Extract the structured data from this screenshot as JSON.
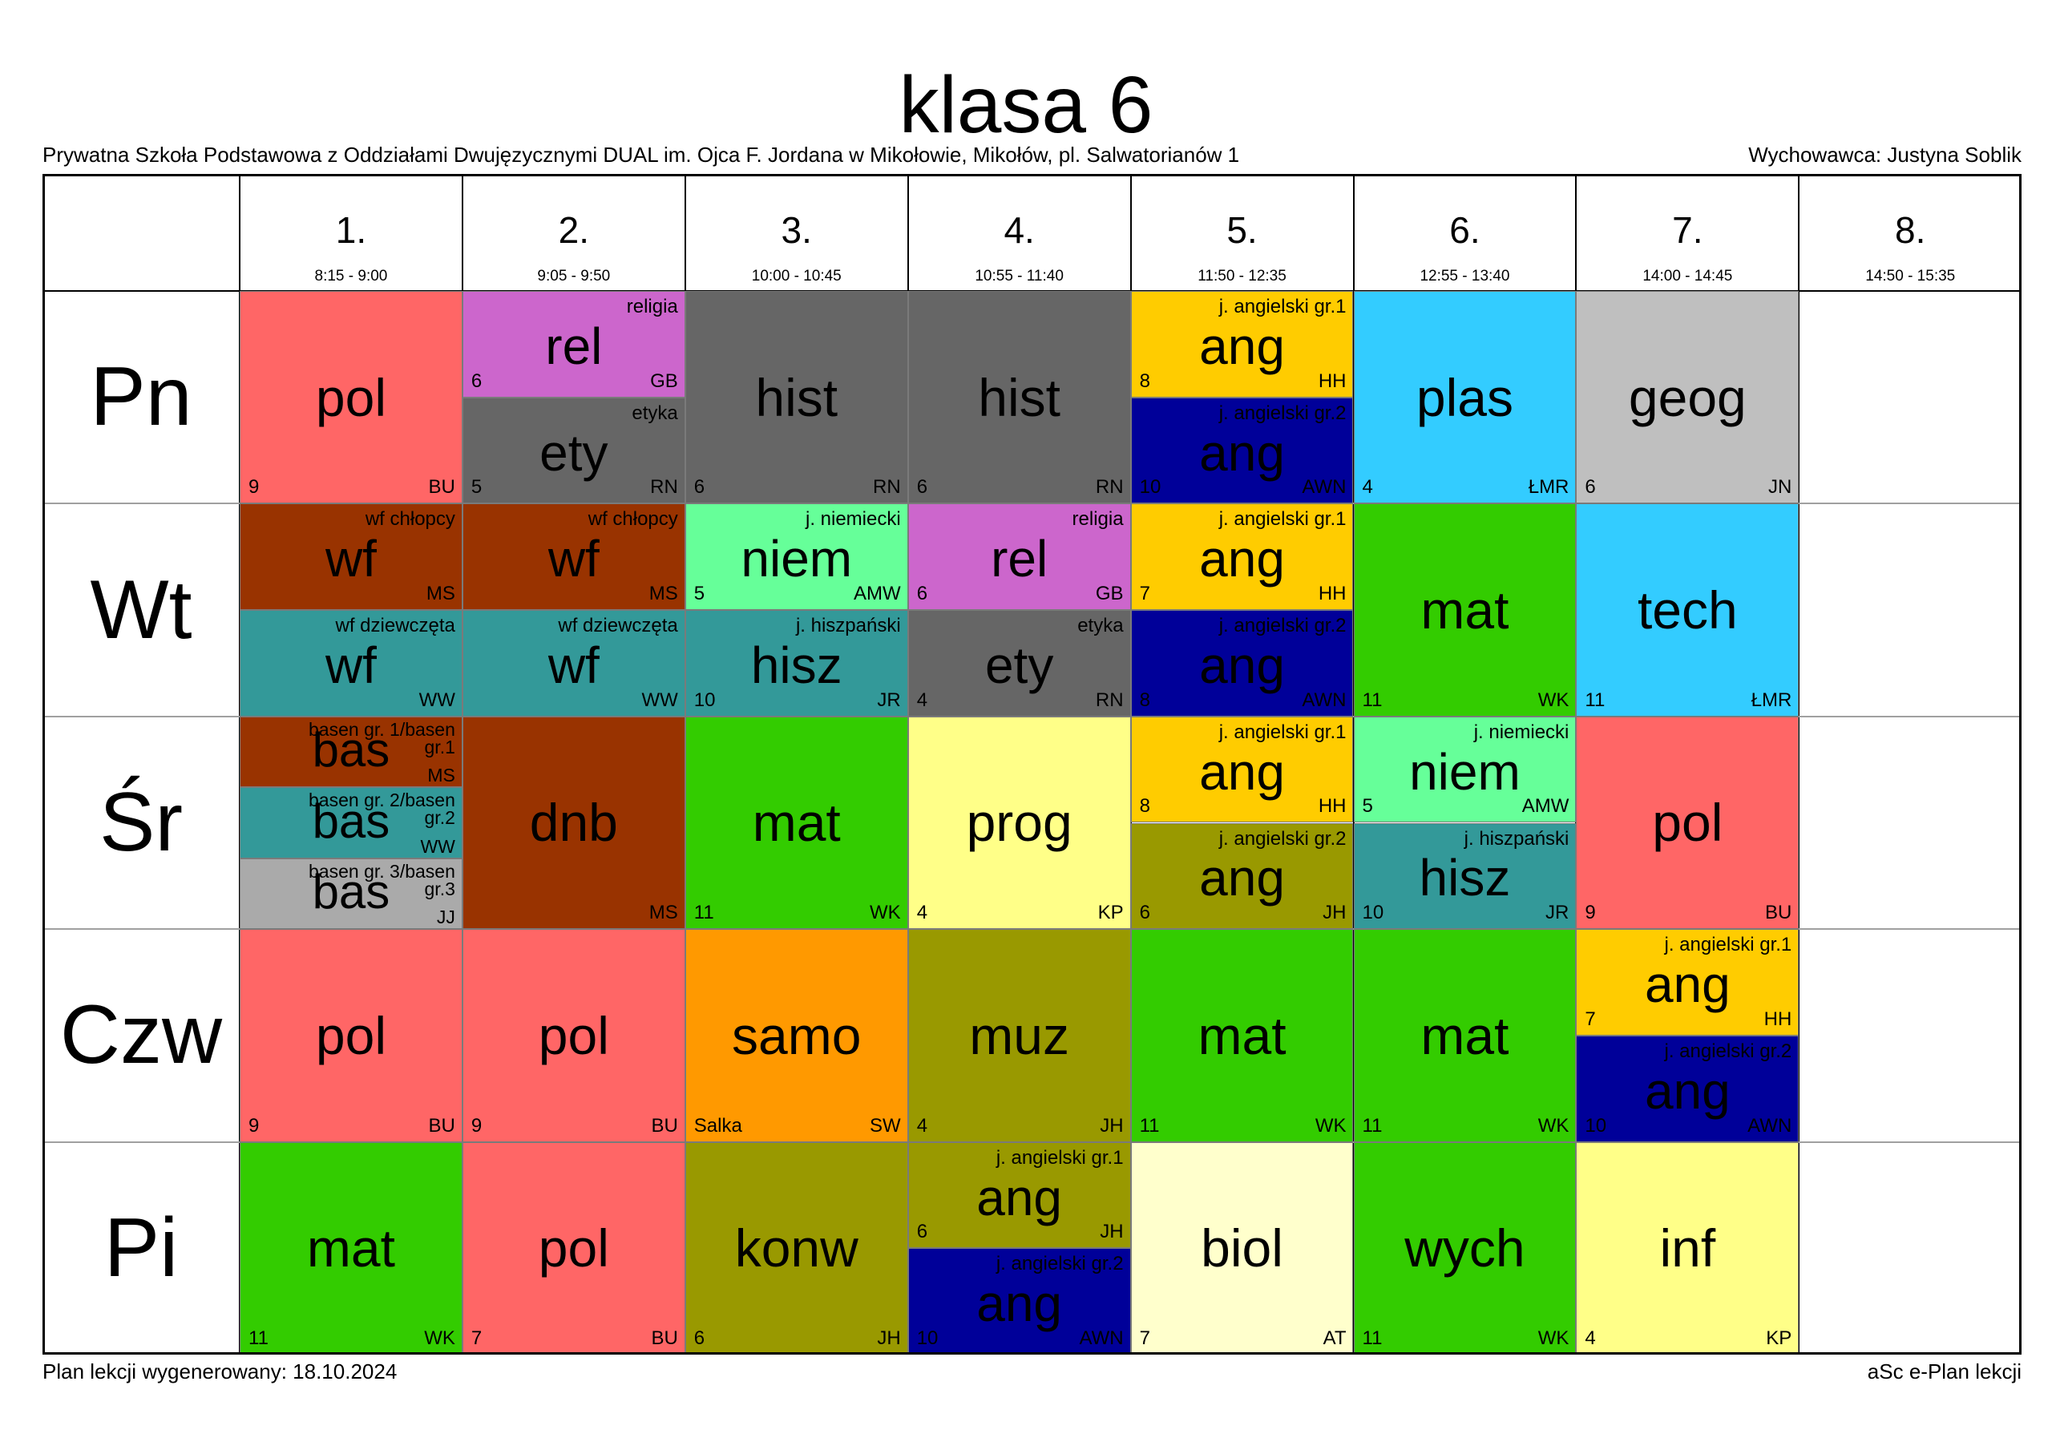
{
  "header": {
    "title": "klasa 6",
    "school": "Prywatna Szkoła Podstawowa z Oddziałami Dwujęzycznymi DUAL im. Ojca F. Jordana w Mikołowie, Mikołów, pl. Salwatorianów 1",
    "homeroom": "Wychowawca: Justyna Soblik"
  },
  "footer": {
    "generated": "Plan lekcji wygenerowany: 18.10.2024",
    "software": "aSc e-Plan lekcji"
  },
  "periods": [
    {
      "num": "1.",
      "time": "8:15 - 9:00"
    },
    {
      "num": "2.",
      "time": "9:05 - 9:50"
    },
    {
      "num": "3.",
      "time": "10:00 - 10:45"
    },
    {
      "num": "4.",
      "time": "10:55 - 11:40"
    },
    {
      "num": "5.",
      "time": "11:50 - 12:35"
    },
    {
      "num": "6.",
      "time": "12:55 - 13:40"
    },
    {
      "num": "7.",
      "time": "14:00 - 14:45"
    },
    {
      "num": "8.",
      "time": "14:50 - 15:35"
    }
  ],
  "days": [
    "Pn",
    "Wt",
    "Śr",
    "Czw",
    "Pi"
  ],
  "lessons": [
    {
      "day": 0,
      "period": 0,
      "part": 0,
      "parts": 1,
      "subject": "pol",
      "room": "9",
      "teacher": "BU",
      "color": "#ff6666"
    },
    {
      "day": 0,
      "period": 1,
      "part": 0,
      "parts": 2,
      "subject": "rel",
      "label": "religia",
      "room": "6",
      "teacher": "GB",
      "color": "#cc66cc"
    },
    {
      "day": 0,
      "period": 1,
      "part": 1,
      "parts": 2,
      "subject": "ety",
      "label": "etyka",
      "room": "5",
      "teacher": "RN",
      "color": "#666666"
    },
    {
      "day": 0,
      "period": 2,
      "part": 0,
      "parts": 1,
      "subject": "hist",
      "room": "6",
      "teacher": "RN",
      "color": "#666666"
    },
    {
      "day": 0,
      "period": 3,
      "part": 0,
      "parts": 1,
      "subject": "hist",
      "room": "6",
      "teacher": "RN",
      "color": "#666666"
    },
    {
      "day": 0,
      "period": 4,
      "part": 0,
      "parts": 2,
      "subject": "ang",
      "label": "j. angielski gr.1",
      "room": "8",
      "teacher": "HH",
      "color": "#ffcc00"
    },
    {
      "day": 0,
      "period": 4,
      "part": 1,
      "parts": 2,
      "subject": "ang",
      "label": "j. angielski gr.2",
      "room": "10",
      "teacher": "AWN",
      "color": "#000099"
    },
    {
      "day": 0,
      "period": 5,
      "part": 0,
      "parts": 1,
      "subject": "plas",
      "room": "4",
      "teacher": "ŁMR",
      "color": "#33ccff"
    },
    {
      "day": 0,
      "period": 6,
      "part": 0,
      "parts": 1,
      "subject": "geog",
      "room": "6",
      "teacher": "JN",
      "color": "#bfbfbf"
    },
    {
      "day": 1,
      "period": 0,
      "part": 0,
      "parts": 2,
      "subject": "wf",
      "label": "wf chłopcy",
      "room": "",
      "teacher": "MS",
      "color": "#993300"
    },
    {
      "day": 1,
      "period": 0,
      "part": 1,
      "parts": 2,
      "subject": "wf",
      "label": "wf dziewczęta",
      "room": "",
      "teacher": "WW",
      "color": "#339999"
    },
    {
      "day": 1,
      "period": 1,
      "part": 0,
      "parts": 2,
      "subject": "wf",
      "label": "wf chłopcy",
      "room": "",
      "teacher": "MS",
      "color": "#993300"
    },
    {
      "day": 1,
      "period": 1,
      "part": 1,
      "parts": 2,
      "subject": "wf",
      "label": "wf dziewczęta",
      "room": "",
      "teacher": "WW",
      "color": "#339999"
    },
    {
      "day": 1,
      "period": 2,
      "part": 0,
      "parts": 2,
      "subject": "niem",
      "label": "j. niemiecki",
      "room": "5",
      "teacher": "AMW",
      "color": "#66ff99"
    },
    {
      "day": 1,
      "period": 2,
      "part": 1,
      "parts": 2,
      "subject": "hisz",
      "label": "j. hiszpański",
      "room": "10",
      "teacher": "JR",
      "color": "#339999"
    },
    {
      "day": 1,
      "period": 3,
      "part": 0,
      "parts": 2,
      "subject": "rel",
      "label": "religia",
      "room": "6",
      "teacher": "GB",
      "color": "#cc66cc"
    },
    {
      "day": 1,
      "period": 3,
      "part": 1,
      "parts": 2,
      "subject": "ety",
      "label": "etyka",
      "room": "4",
      "teacher": "RN",
      "color": "#666666"
    },
    {
      "day": 1,
      "period": 4,
      "part": 0,
      "parts": 2,
      "subject": "ang",
      "label": "j. angielski gr.1",
      "room": "7",
      "teacher": "HH",
      "color": "#ffcc00"
    },
    {
      "day": 1,
      "period": 4,
      "part": 1,
      "parts": 2,
      "subject": "ang",
      "label": "j. angielski gr.2",
      "room": "8",
      "teacher": "AWN",
      "color": "#000099"
    },
    {
      "day": 1,
      "period": 5,
      "part": 0,
      "parts": 1,
      "subject": "mat",
      "room": "11",
      "teacher": "WK",
      "color": "#33cc00"
    },
    {
      "day": 1,
      "period": 6,
      "part": 0,
      "parts": 1,
      "subject": "tech",
      "room": "11",
      "teacher": "ŁMR",
      "color": "#33ccff"
    },
    {
      "day": 2,
      "period": 0,
      "part": 0,
      "parts": 3,
      "subject": "bas",
      "label": "basen gr. 1/basen gr.1",
      "room": "",
      "teacher": "MS",
      "color": "#993300"
    },
    {
      "day": 2,
      "period": 0,
      "part": 1,
      "parts": 3,
      "subject": "bas",
      "label": "basen gr. 2/basen gr.2",
      "room": "",
      "teacher": "WW",
      "color": "#339999"
    },
    {
      "day": 2,
      "period": 0,
      "part": 2,
      "parts": 3,
      "subject": "bas",
      "label": "basen gr. 3/basen gr.3",
      "room": "",
      "teacher": "JJ",
      "color": "#aaaaaa"
    },
    {
      "day": 2,
      "period": 1,
      "part": 0,
      "parts": 1,
      "subject": "dnb",
      "room": "",
      "teacher": "MS",
      "color": "#993300"
    },
    {
      "day": 2,
      "period": 2,
      "part": 0,
      "parts": 1,
      "subject": "mat",
      "room": "11",
      "teacher": "WK",
      "color": "#33cc00"
    },
    {
      "day": 2,
      "period": 3,
      "part": 0,
      "parts": 1,
      "subject": "prog",
      "room": "4",
      "teacher": "KP",
      "color": "#ffff88"
    },
    {
      "day": 2,
      "period": 4,
      "part": 0,
      "parts": 2,
      "subject": "ang",
      "label": "j. angielski gr.1",
      "room": "8",
      "teacher": "HH",
      "color": "#ffcc00"
    },
    {
      "day": 2,
      "period": 4,
      "part": 1,
      "parts": 2,
      "subject": "ang",
      "label": "j. angielski gr.2",
      "room": "6",
      "teacher": "JH",
      "color": "#999900"
    },
    {
      "day": 2,
      "period": 5,
      "part": 0,
      "parts": 2,
      "subject": "niem",
      "label": "j. niemiecki",
      "room": "5",
      "teacher": "AMW",
      "color": "#66ff99"
    },
    {
      "day": 2,
      "period": 5,
      "part": 1,
      "parts": 2,
      "subject": "hisz",
      "label": "j. hiszpański",
      "room": "10",
      "teacher": "JR",
      "color": "#339999"
    },
    {
      "day": 2,
      "period": 6,
      "part": 0,
      "parts": 1,
      "subject": "pol",
      "room": "9",
      "teacher": "BU",
      "color": "#ff6666"
    },
    {
      "day": 3,
      "period": 0,
      "part": 0,
      "parts": 1,
      "subject": "pol",
      "room": "9",
      "teacher": "BU",
      "color": "#ff6666"
    },
    {
      "day": 3,
      "period": 1,
      "part": 0,
      "parts": 1,
      "subject": "pol",
      "room": "9",
      "teacher": "BU",
      "color": "#ff6666"
    },
    {
      "day": 3,
      "period": 2,
      "part": 0,
      "parts": 1,
      "subject": "samo",
      "room": "Salka",
      "teacher": "SW",
      "color": "#ff9900"
    },
    {
      "day": 3,
      "period": 3,
      "part": 0,
      "parts": 1,
      "subject": "muz",
      "room": "4",
      "teacher": "JH",
      "color": "#999900"
    },
    {
      "day": 3,
      "period": 4,
      "part": 0,
      "parts": 1,
      "subject": "mat",
      "room": "11",
      "teacher": "WK",
      "color": "#33cc00"
    },
    {
      "day": 3,
      "period": 5,
      "part": 0,
      "parts": 1,
      "subject": "mat",
      "room": "11",
      "teacher": "WK",
      "color": "#33cc00"
    },
    {
      "day": 3,
      "period": 6,
      "part": 0,
      "parts": 2,
      "subject": "ang",
      "label": "j. angielski gr.1",
      "room": "7",
      "teacher": "HH",
      "color": "#ffcc00"
    },
    {
      "day": 3,
      "period": 6,
      "part": 1,
      "parts": 2,
      "subject": "ang",
      "label": "j. angielski gr.2",
      "room": "10",
      "teacher": "AWN",
      "color": "#000099"
    },
    {
      "day": 4,
      "period": 0,
      "part": 0,
      "parts": 1,
      "subject": "mat",
      "room": "11",
      "teacher": "WK",
      "color": "#33cc00"
    },
    {
      "day": 4,
      "period": 1,
      "part": 0,
      "parts": 1,
      "subject": "pol",
      "room": "7",
      "teacher": "BU",
      "color": "#ff6666"
    },
    {
      "day": 4,
      "period": 2,
      "part": 0,
      "parts": 1,
      "subject": "konw",
      "room": "6",
      "teacher": "JH",
      "color": "#999900"
    },
    {
      "day": 4,
      "period": 3,
      "part": 0,
      "parts": 2,
      "subject": "ang",
      "label": "j. angielski gr.1",
      "room": "6",
      "teacher": "JH",
      "color": "#999900"
    },
    {
      "day": 4,
      "period": 3,
      "part": 1,
      "parts": 2,
      "subject": "ang",
      "label": "j. angielski gr.2",
      "room": "10",
      "teacher": "AWN",
      "color": "#000099"
    },
    {
      "day": 4,
      "period": 4,
      "part": 0,
      "parts": 1,
      "subject": "biol",
      "room": "7",
      "teacher": "AT",
      "color": "#ffffcc"
    },
    {
      "day": 4,
      "period": 5,
      "part": 0,
      "parts": 1,
      "subject": "wych",
      "room": "11",
      "teacher": "WK",
      "color": "#33cc00"
    },
    {
      "day": 4,
      "period": 6,
      "part": 0,
      "parts": 1,
      "subject": "inf",
      "room": "4",
      "teacher": "KP",
      "color": "#ffff88"
    }
  ]
}
